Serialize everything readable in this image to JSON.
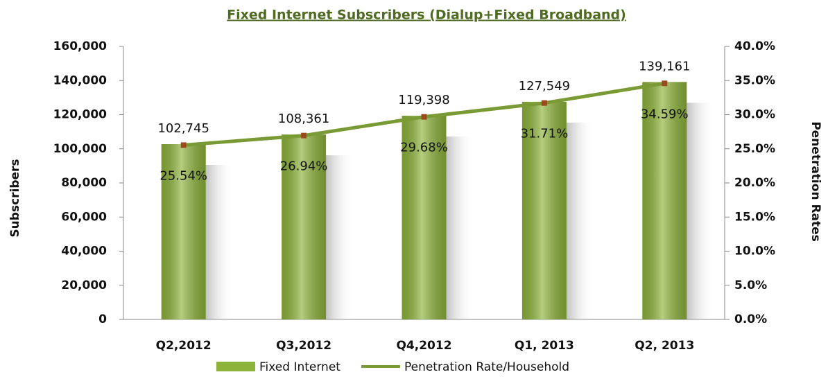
{
  "chart_data": {
    "type": "bar_line",
    "title": "Fixed Internet Subscribers (Dialup+Fixed Broadband)",
    "y_label": "Subscribers",
    "y2_label": "Penetration Rates",
    "categories": [
      "Q2,2012",
      "Q3,2012",
      "Q4,2012",
      "Q1, 2013",
      "Q2, 2013"
    ],
    "series": [
      {
        "name": "Fixed Internet",
        "type": "bar",
        "color": "#8db33a",
        "values": [
          102745,
          108361,
          119398,
          127549,
          139161
        ],
        "value_labels": [
          "102,745",
          "108,361",
          "119,398",
          "127,549",
          "139,161"
        ]
      },
      {
        "name": "Penetration Rate/Household",
        "type": "line",
        "axis": "y2",
        "color": "#7a9a35",
        "marker_color": "#9b4a1e",
        "values": [
          25.54,
          26.94,
          29.68,
          31.71,
          34.59
        ],
        "value_labels": [
          "25.54%",
          "26.94%",
          "29.68%",
          "31.71%",
          "34.59%"
        ]
      }
    ],
    "ylim": [
      0,
      160000
    ],
    "yticks": [
      0,
      {
        "value": 20000,
        "label": "20,000"
      },
      {
        "value": 40000,
        "label": "40,000"
      },
      {
        "value": 60000,
        "label": "60,000"
      },
      {
        "value": 80000,
        "label": "80,000"
      },
      {
        "value": 100000,
        "label": "100,000"
      },
      {
        "value": 120000,
        "label": "120,000"
      },
      {
        "value": 140000,
        "label": "140,000"
      },
      {
        "value": 160000,
        "label": "160,000"
      }
    ],
    "y2lim": [
      0,
      40
    ],
    "y2ticks": [
      {
        "value": 0,
        "label": "0.0%"
      },
      {
        "value": 5,
        "label": "5.0%"
      },
      {
        "value": 10,
        "label": "10.0%"
      },
      {
        "value": 15,
        "label": "15.0%"
      },
      {
        "value": 20,
        "label": "20.0%"
      },
      {
        "value": 25,
        "label": "25.0%"
      },
      {
        "value": 30,
        "label": "30.0%"
      },
      {
        "value": 35,
        "label": "35.0%"
      },
      {
        "value": 40,
        "label": "40.0%"
      }
    ],
    "legend": "bottom"
  }
}
